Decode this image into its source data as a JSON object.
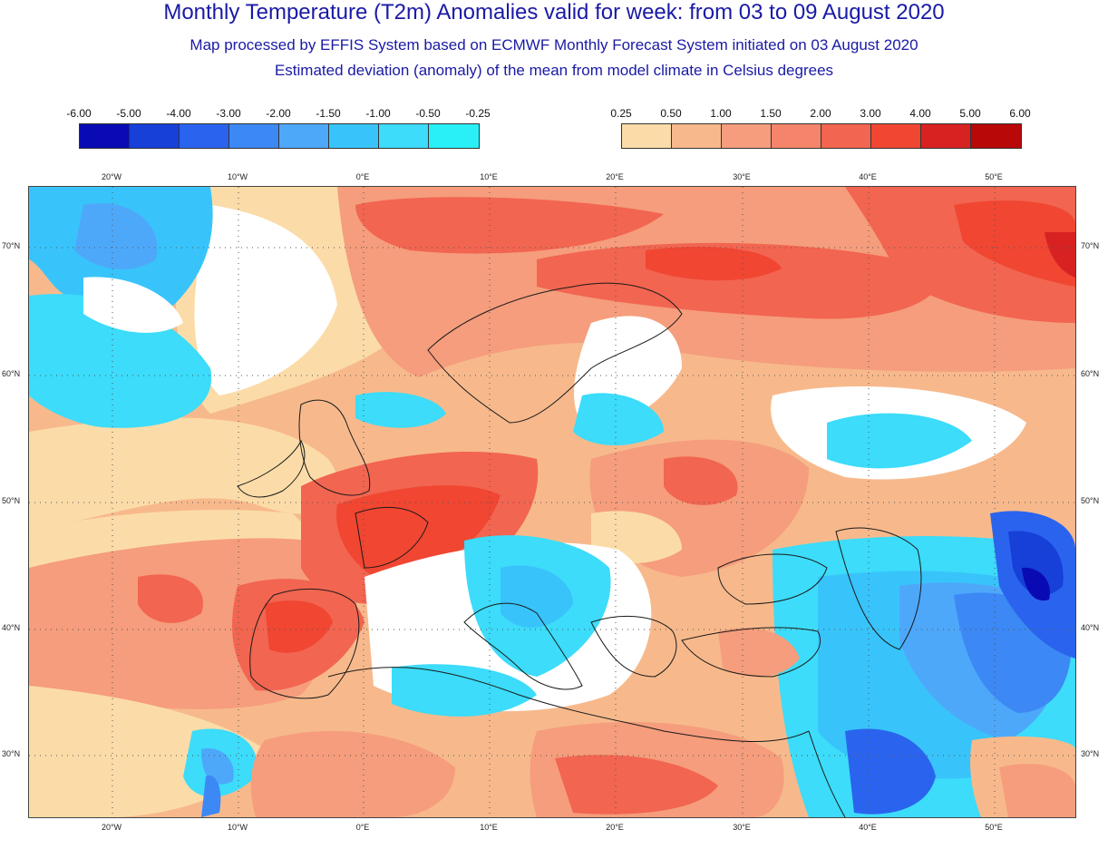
{
  "header": {
    "title": "Monthly Temperature (T2m) Anomalies valid for week: from 03 to 09 August 2020",
    "subtitle_1": "Map processed by EFFIS System based on ECMWF Monthly Forecast System initiated on 03 August 2020",
    "subtitle_2": "Estimated deviation (anomaly) of the mean from model climate in Celsius degrees"
  },
  "legend_negative": {
    "labels": [
      "-6.00",
      "-5.00",
      "-4.00",
      "-3.00",
      "-2.00",
      "-1.50",
      "-1.00",
      "-0.50",
      "-0.25"
    ],
    "colors": [
      "#0a0ab4",
      "#1640d8",
      "#2a64ee",
      "#3c88f4",
      "#4ea8fa",
      "#38c4fa",
      "#3cdcfa",
      "#28f0f6"
    ]
  },
  "legend_positive": {
    "labels": [
      "0.25",
      "0.50",
      "1.00",
      "1.50",
      "2.00",
      "3.00",
      "4.00",
      "5.00",
      "6.00"
    ],
    "colors": [
      "#fbdca8",
      "#f7b98c",
      "#f59d7c",
      "#f5856a",
      "#f26550",
      "#f04632",
      "#d82222",
      "#b80808"
    ]
  },
  "map": {
    "lon_labels": [
      "20°W",
      "10°W",
      "0°E",
      "10°E",
      "20°E",
      "30°E",
      "40°E",
      "50°E"
    ],
    "lat_labels": [
      "70°N",
      "60°N",
      "50°N",
      "40°N",
      "30°N"
    ],
    "colors": {
      "pos1": "#fbdca8",
      "pos2": "#f7b98c",
      "pos3": "#f59d7c",
      "pos4": "#f26550",
      "pos5": "#f04632",
      "pos6": "#d82222",
      "neg1": "#28f0f6",
      "neg2": "#3cdcfa",
      "neg3": "#38c4fa",
      "neg4": "#4ea8fa",
      "neg5": "#3c88f4",
      "neg6": "#2a64ee",
      "neg7": "#1640d8",
      "neg8": "#0a0ab4"
    }
  }
}
